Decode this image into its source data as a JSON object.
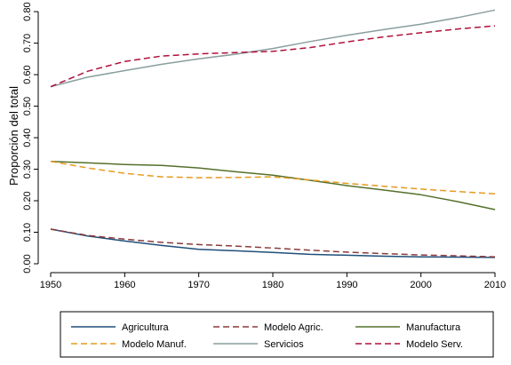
{
  "chart_data": {
    "type": "line",
    "ylabel": "Proporción del total",
    "xlim": [
      1950,
      2010
    ],
    "ylim": [
      0,
      0.82
    ],
    "xticks": [
      "1950",
      "1960",
      "1970",
      "1980",
      "1990",
      "2000",
      "2010"
    ],
    "yticks": [
      "0.00",
      "0.10",
      "0.20",
      "0.30",
      "0.40",
      "0.50",
      "0.60",
      "0.70",
      "0.80"
    ],
    "grid": false,
    "legend_position": "bottom",
    "x": [
      1950,
      1955,
      1960,
      1965,
      1970,
      1975,
      1980,
      1985,
      1990,
      1995,
      2000,
      2005,
      2010
    ],
    "series": [
      {
        "name": "Agricultura",
        "color": "#1f4e79",
        "dash": "solid",
        "values": [
          0.11,
          0.088,
          0.072,
          0.058,
          0.046,
          0.041,
          0.036,
          0.03,
          0.027,
          0.024,
          0.022,
          0.021,
          0.02
        ]
      },
      {
        "name": "Modelo Agric.",
        "color": "#8b3a3a",
        "dash": "dashed",
        "values": [
          0.11,
          0.09,
          0.078,
          0.068,
          0.061,
          0.056,
          0.05,
          0.043,
          0.037,
          0.032,
          0.028,
          0.025,
          0.022
        ]
      },
      {
        "name": "Manufactura",
        "color": "#55702b",
        "dash": "solid",
        "values": [
          0.325,
          0.32,
          0.315,
          0.312,
          0.304,
          0.292,
          0.281,
          0.265,
          0.248,
          0.234,
          0.219,
          0.197,
          0.172
        ]
      },
      {
        "name": "Modelo Manuf.",
        "color": "#e69a1e",
        "dash": "dashed",
        "values": [
          0.325,
          0.304,
          0.287,
          0.276,
          0.273,
          0.274,
          0.276,
          0.266,
          0.255,
          0.246,
          0.237,
          0.229,
          0.222
        ]
      },
      {
        "name": "Servicios",
        "color": "#8a9e9e",
        "dash": "solid",
        "values": [
          0.562,
          0.592,
          0.613,
          0.633,
          0.65,
          0.665,
          0.683,
          0.705,
          0.725,
          0.743,
          0.76,
          0.781,
          0.805
        ]
      },
      {
        "name": "Modelo Serv.",
        "color": "#b0103c",
        "dash": "dashed",
        "values": [
          0.562,
          0.611,
          0.642,
          0.659,
          0.666,
          0.67,
          0.674,
          0.686,
          0.704,
          0.72,
          0.733,
          0.745,
          0.755
        ]
      }
    ]
  }
}
